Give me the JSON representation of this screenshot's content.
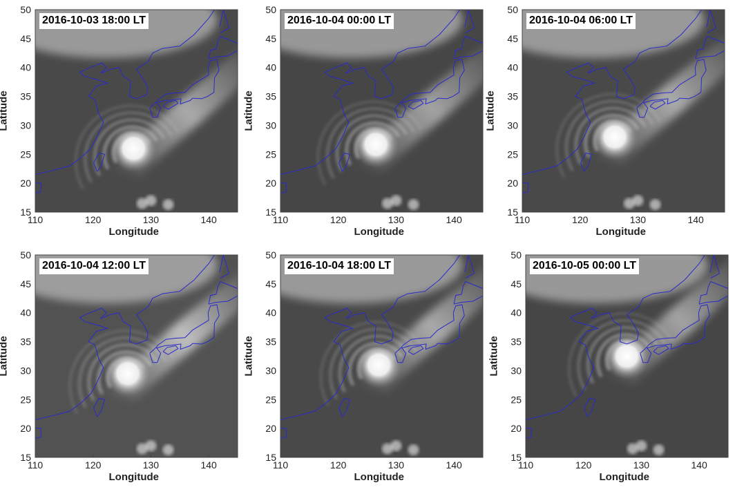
{
  "axes": {
    "xlabel": "Longitude",
    "ylabel": "Latitude",
    "xticks": [
      110,
      120,
      130,
      140
    ],
    "yticks": [
      15,
      20,
      25,
      30,
      35,
      40,
      45,
      50
    ],
    "xlim": [
      110,
      145
    ],
    "ylim": [
      15,
      50
    ]
  },
  "panels": [
    {
      "id": "p1",
      "timestamp": "2016-10-03 18:00 LT",
      "center": [
        127,
        26
      ],
      "brightness": 0.55
    },
    {
      "id": "p2",
      "timestamp": "2016-10-04 00:00 LT",
      "center": [
        126.5,
        26.7
      ],
      "brightness": 0.5
    },
    {
      "id": "p3",
      "timestamp": "2016-10-04 06:00 LT",
      "center": [
        126,
        28
      ],
      "brightness": 0.55
    },
    {
      "id": "p4",
      "timestamp": "2016-10-04 12:00 LT",
      "center": [
        126,
        29.5
      ],
      "brightness": 0.7
    },
    {
      "id": "p5",
      "timestamp": "2016-10-04 18:00 LT",
      "center": [
        127,
        31
      ],
      "brightness": 0.55
    },
    {
      "id": "p6",
      "timestamp": "2016-10-05 00:00 LT",
      "center": [
        127.5,
        32.5
      ],
      "brightness": 0.5
    }
  ],
  "colors": {
    "coastline": "#2a2acc",
    "frame": "#444444"
  }
}
